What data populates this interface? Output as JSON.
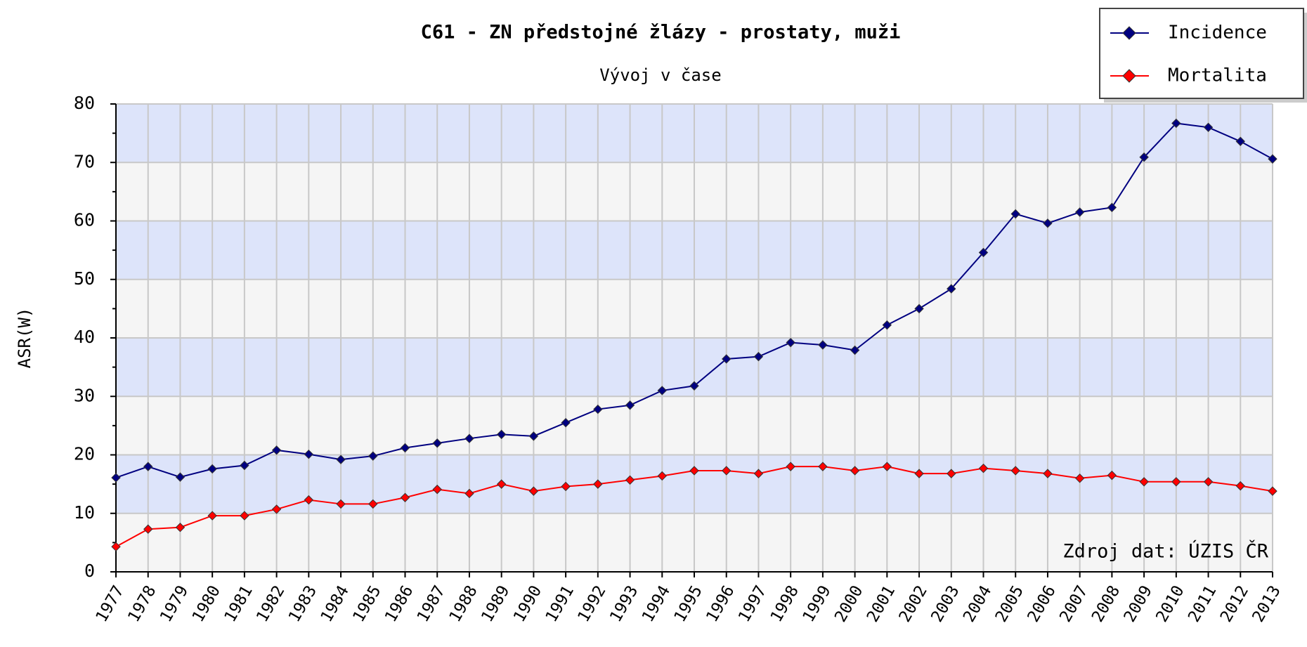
{
  "chart_data": {
    "type": "line",
    "title": "C61 - ZN předstojné žlázy - prostaty, muži",
    "subtitle": "Vývoj v čase",
    "y_label": "ASR(W)",
    "annotation": "Zdroj dat: ÚZIS ČR",
    "categories": [
      "1977",
      "1978",
      "1979",
      "1980",
      "1981",
      "1982",
      "1983",
      "1984",
      "1985",
      "1986",
      "1987",
      "1988",
      "1989",
      "1990",
      "1991",
      "1992",
      "1993",
      "1994",
      "1995",
      "1996",
      "1997",
      "1998",
      "1999",
      "2000",
      "2001",
      "2002",
      "2003",
      "2004",
      "2005",
      "2006",
      "2007",
      "2008",
      "2009",
      "2010",
      "2011",
      "2012",
      "2013"
    ],
    "series": [
      {
        "name": "Incidence",
        "color": "#000080",
        "values": [
          16.1,
          18.0,
          16.2,
          17.6,
          18.2,
          20.8,
          20.1,
          19.2,
          19.8,
          21.2,
          22.0,
          22.8,
          23.5,
          23.2,
          25.5,
          27.8,
          28.5,
          31.0,
          31.8,
          36.4,
          36.8,
          39.2,
          38.8,
          37.9,
          42.2,
          45.0,
          48.4,
          54.6,
          61.2,
          59.6,
          61.5,
          62.3,
          70.9,
          76.7,
          76.0,
          73.6,
          70.6
        ]
      },
      {
        "name": "Mortalita",
        "color": "#ff0000",
        "values": [
          4.3,
          7.3,
          7.6,
          9.6,
          9.6,
          10.7,
          12.3,
          11.6,
          11.6,
          12.7,
          14.1,
          13.4,
          15.0,
          13.8,
          14.6,
          15.0,
          15.7,
          16.4,
          17.3,
          17.3,
          16.8,
          18.0,
          18.0,
          17.3,
          18.0,
          16.8,
          16.8,
          17.7,
          17.3,
          16.8,
          16.0,
          16.5,
          15.4,
          15.4,
          15.4,
          14.7,
          13.8
        ]
      }
    ],
    "ylim": [
      0,
      80
    ],
    "yticks": [
      0,
      10,
      20,
      30,
      40,
      50,
      60,
      70,
      80
    ],
    "grid": true,
    "legend": "top-right"
  }
}
